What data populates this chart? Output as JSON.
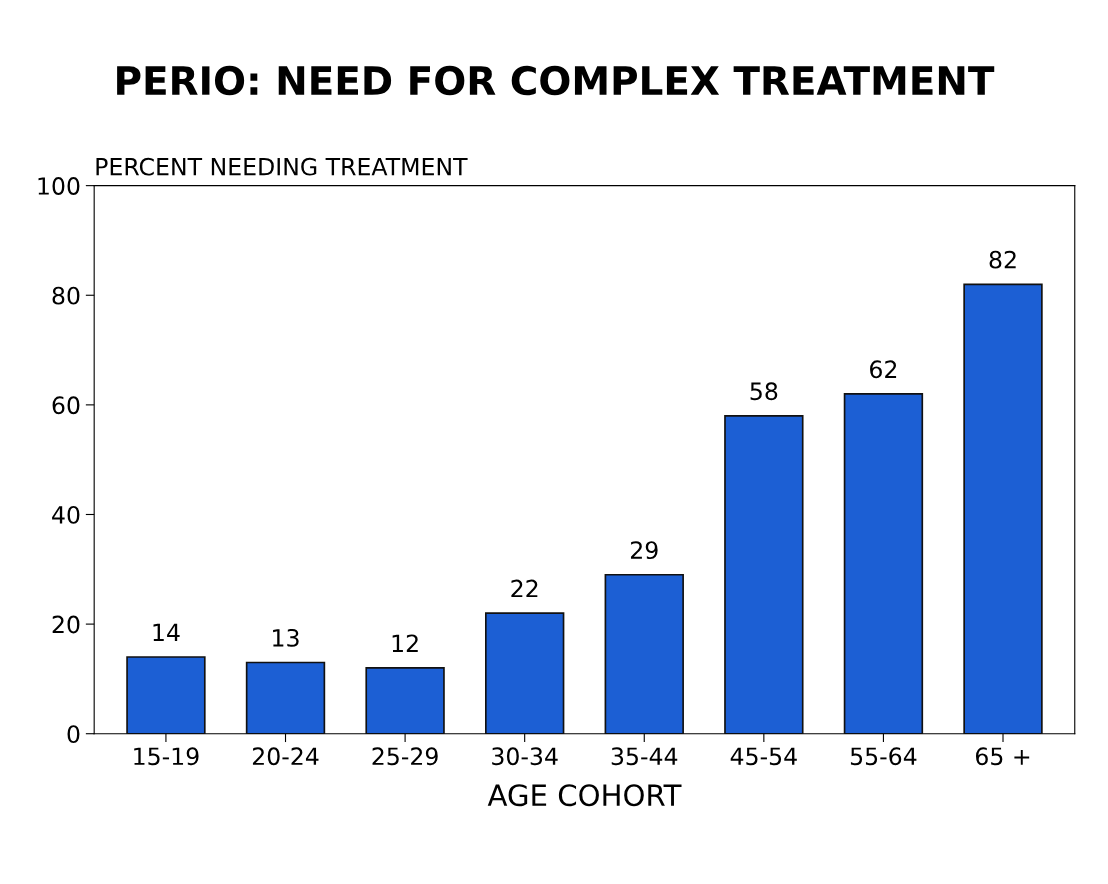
{
  "chart_data": {
    "type": "bar",
    "title": "PERIO: NEED FOR COMPLEX TREATMENT",
    "ylabel": "PERCENT NEEDING TREATMENT",
    "xlabel": "AGE COHORT",
    "categories": [
      "15-19",
      "20-24",
      "25-29",
      "30-34",
      "35-44",
      "45-54",
      "55-64",
      "65 +"
    ],
    "values": [
      14,
      13,
      12,
      22,
      29,
      58,
      62,
      82
    ],
    "color": "#1c5fd4",
    "ylim": [
      0,
      100
    ],
    "yticks": [
      0,
      20,
      40,
      60,
      80,
      100
    ],
    "data_labels": true,
    "grid": false,
    "legend": false
  }
}
